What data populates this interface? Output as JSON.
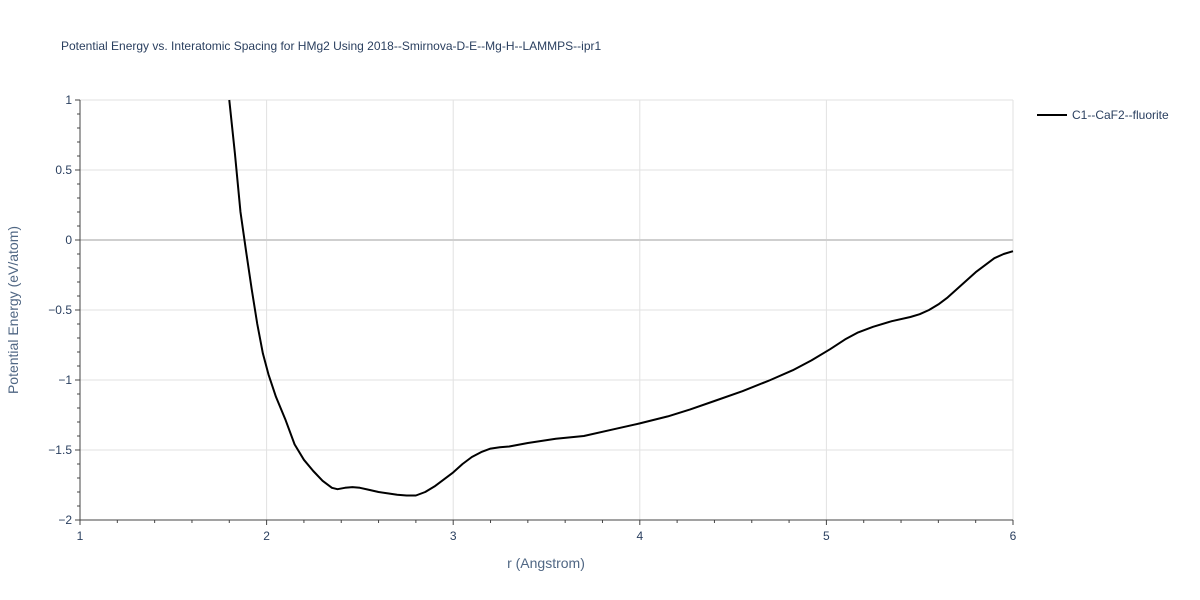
{
  "chart_data": {
    "type": "line",
    "title": "Potential Energy vs. Interatomic Spacing for HMg2 Using 2018--Smirnova-D-E--Mg-H--LAMMPS--ipr1",
    "xlabel": "r (Angstrom)",
    "ylabel": "Potential Energy (eV/atom)",
    "xlim": [
      1,
      6
    ],
    "ylim": [
      -2,
      1
    ],
    "x_ticks": [
      1,
      2,
      3,
      4,
      5,
      6
    ],
    "x_tick_labels": [
      "1",
      "2",
      "3",
      "4",
      "5",
      "6"
    ],
    "y_ticks": [
      -2,
      -1.5,
      -1,
      -0.5,
      0,
      0.5,
      1
    ],
    "y_tick_labels": [
      "−2",
      "−1.5",
      "−1",
      "−0.5",
      "0",
      "0.5",
      "1"
    ],
    "grid": true,
    "legend_position": "top-right",
    "series": [
      {
        "name": "C1--CaF2--fluorite",
        "color": "#000000",
        "x": [
          1.8,
          1.83,
          1.86,
          1.89,
          1.92,
          1.95,
          1.98,
          2.01,
          2.05,
          2.1,
          2.15,
          2.2,
          2.25,
          2.3,
          2.35,
          2.38,
          2.42,
          2.46,
          2.5,
          2.55,
          2.6,
          2.65,
          2.7,
          2.75,
          2.8,
          2.85,
          2.9,
          2.95,
          3.0,
          3.05,
          3.1,
          3.15,
          3.2,
          3.25,
          3.3,
          3.4,
          3.55,
          3.7,
          3.85,
          4.0,
          4.15,
          4.27,
          4.4,
          4.55,
          4.7,
          4.82,
          4.92,
          5.02,
          5.1,
          5.17,
          5.25,
          5.35,
          5.45,
          5.5,
          5.55,
          5.6,
          5.65,
          5.7,
          5.75,
          5.8,
          5.85,
          5.9,
          5.95,
          6.0
        ],
        "y": [
          1.0,
          0.62,
          0.2,
          -0.08,
          -0.35,
          -0.6,
          -0.81,
          -0.96,
          -1.12,
          -1.28,
          -1.46,
          -1.57,
          -1.65,
          -1.72,
          -1.77,
          -1.78,
          -1.77,
          -1.765,
          -1.77,
          -1.785,
          -1.8,
          -1.81,
          -1.82,
          -1.825,
          -1.825,
          -1.8,
          -1.76,
          -1.71,
          -1.66,
          -1.6,
          -1.55,
          -1.515,
          -1.49,
          -1.48,
          -1.475,
          -1.45,
          -1.42,
          -1.4,
          -1.355,
          -1.31,
          -1.26,
          -1.21,
          -1.15,
          -1.08,
          -1.0,
          -0.93,
          -0.86,
          -0.78,
          -0.71,
          -0.66,
          -0.62,
          -0.58,
          -0.55,
          -0.53,
          -0.5,
          -0.46,
          -0.41,
          -0.35,
          -0.29,
          -0.23,
          -0.18,
          -0.13,
          -0.1,
          -0.08
        ]
      }
    ]
  }
}
